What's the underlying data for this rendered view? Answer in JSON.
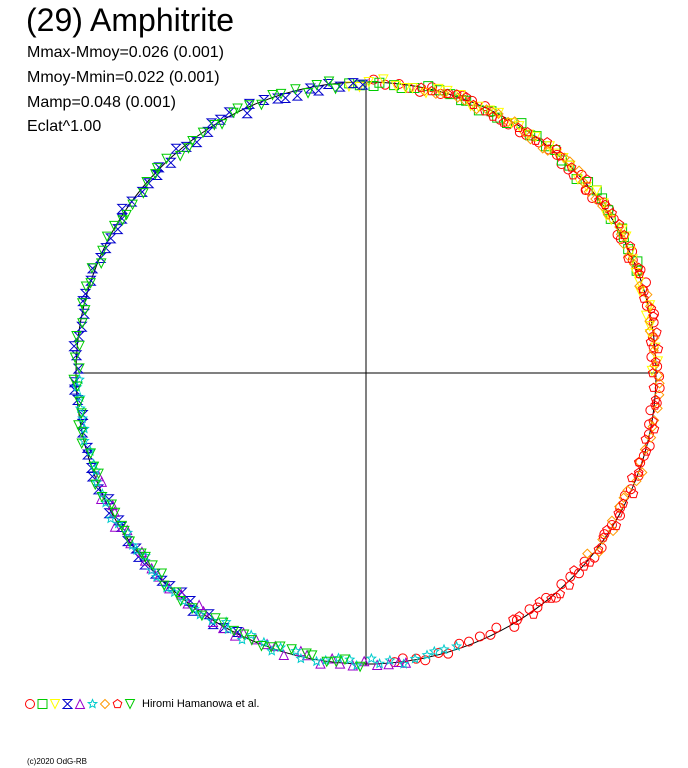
{
  "header": {
    "title": "(29) Amphitrite",
    "stats": [
      "Mmax-Mmoy=0.026 (0.001)",
      "Mmoy-Mmin=0.022 (0.001)",
      "Mamp=0.048 (0.001)",
      "Eclat^1.00"
    ]
  },
  "legend": {
    "symbols": [
      {
        "shape": "circle",
        "color": "#ff0000"
      },
      {
        "shape": "square",
        "color": "#00cc00"
      },
      {
        "shape": "triangle-down",
        "color": "#ffff00"
      },
      {
        "shape": "hourglass",
        "color": "#0000cc"
      },
      {
        "shape": "triangle-up",
        "color": "#9900cc"
      },
      {
        "shape": "star",
        "color": "#00cccc"
      },
      {
        "shape": "diamond",
        "color": "#ff9900"
      },
      {
        "shape": "pentagon",
        "color": "#ff0000"
      },
      {
        "shape": "triangle-down",
        "color": "#00cc00"
      }
    ],
    "author": "Hiromi Hamanowa et al."
  },
  "footer": {
    "copyright": "(c)2020 OdG-RB"
  },
  "chart_data": {
    "type": "scatter",
    "description_note": "",
    "axes": {
      "x_range": [
        -1.05,
        1.05
      ],
      "y_range": [
        -1.05,
        1.05
      ],
      "crosshair": true
    },
    "reference_curve": "unit circle",
    "series": [
      {
        "color": "#ff0000",
        "shape": "circle",
        "arc_deg": [
          -85,
          90
        ]
      },
      {
        "color": "#00cc00",
        "shape": "square",
        "arc_deg": [
          20,
          95
        ]
      },
      {
        "color": "#ffff00",
        "shape": "triangle-down",
        "arc_deg": [
          0,
          95
        ]
      },
      {
        "color": "#0000cc",
        "shape": "hourglass",
        "arc_deg": [
          90,
          245
        ]
      },
      {
        "color": "#9900cc",
        "shape": "triangle-up",
        "arc_deg": [
          200,
          280
        ]
      },
      {
        "color": "#00cccc",
        "shape": "star",
        "arc_deg": [
          180,
          290
        ]
      },
      {
        "color": "#ff9900",
        "shape": "diamond",
        "arc_deg": [
          -40,
          80
        ]
      },
      {
        "color": "#ff0000",
        "shape": "pentagon",
        "arc_deg": [
          -60,
          80
        ]
      },
      {
        "color": "#00cc00",
        "shape": "triangle-down",
        "arc_deg": [
          95,
          270
        ]
      }
    ]
  }
}
